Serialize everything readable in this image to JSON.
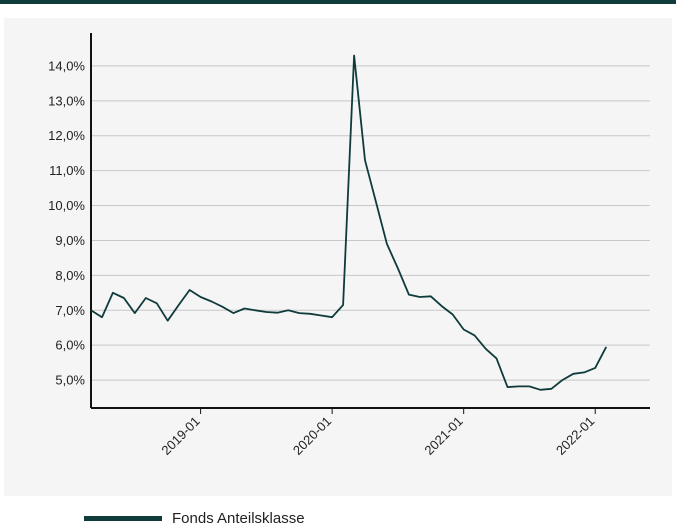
{
  "colors": {
    "series": "#0f3b3b",
    "grid": "#c8c8c8",
    "axis": "#111111",
    "panel": "#f5f5f5",
    "topbar": "#0f3b3b"
  },
  "chart_data": {
    "type": "line",
    "title": "",
    "xlabel": "",
    "ylabel": "",
    "ylim": [
      4.2,
      14.8
    ],
    "xlim": [
      "2018-03",
      "2022-06"
    ],
    "grid": "horizontal",
    "legend_position": "bottom-left",
    "y_ticks": [
      5.0,
      6.0,
      7.0,
      8.0,
      9.0,
      10.0,
      11.0,
      12.0,
      13.0,
      14.0
    ],
    "y_tick_labels": [
      "5,0%",
      "6,0%",
      "7,0%",
      "8,0%",
      "9,0%",
      "10,0%",
      "11,0%",
      "12,0%",
      "13,0%",
      "14,0%"
    ],
    "x_ticks": [
      "2019-01",
      "2020-01",
      "2021-01",
      "2022-01"
    ],
    "x_tick_labels": [
      "2019-01",
      "2020-01",
      "2021-01",
      "2022-01"
    ],
    "series": [
      {
        "name": "Fonds Anteilsklasse",
        "points": [
          [
            "2018-03",
            7.0
          ],
          [
            "2018-04",
            6.8
          ],
          [
            "2018-05",
            7.5
          ],
          [
            "2018-06",
            7.35
          ],
          [
            "2018-07",
            6.92
          ],
          [
            "2018-08",
            7.35
          ],
          [
            "2018-09",
            7.2
          ],
          [
            "2018-10",
            6.7
          ],
          [
            "2018-11",
            7.15
          ],
          [
            "2018-12",
            7.58
          ],
          [
            "2019-01",
            7.38
          ],
          [
            "2019-02",
            7.25
          ],
          [
            "2019-03",
            7.1
          ],
          [
            "2019-04",
            6.92
          ],
          [
            "2019-05",
            7.05
          ],
          [
            "2019-06",
            7.0
          ],
          [
            "2019-07",
            6.95
          ],
          [
            "2019-08",
            6.93
          ],
          [
            "2019-09",
            7.0
          ],
          [
            "2019-10",
            6.92
          ],
          [
            "2019-11",
            6.9
          ],
          [
            "2019-12",
            6.85
          ],
          [
            "2020-01",
            6.8
          ],
          [
            "2020-02",
            7.15
          ],
          [
            "2020-03",
            14.3
          ],
          [
            "2020-04",
            11.3
          ],
          [
            "2020-05",
            10.1
          ],
          [
            "2020-06",
            8.9
          ],
          [
            "2020-07",
            8.2
          ],
          [
            "2020-08",
            7.45
          ],
          [
            "2020-09",
            7.38
          ],
          [
            "2020-10",
            7.4
          ],
          [
            "2020-11",
            7.12
          ],
          [
            "2020-12",
            6.88
          ],
          [
            "2021-01",
            6.45
          ],
          [
            "2021-02",
            6.28
          ],
          [
            "2021-03",
            5.9
          ],
          [
            "2021-04",
            5.62
          ],
          [
            "2021-05",
            4.8
          ],
          [
            "2021-06",
            4.82
          ],
          [
            "2021-07",
            4.82
          ],
          [
            "2021-08",
            4.72
          ],
          [
            "2021-09",
            4.75
          ],
          [
            "2021-10",
            5.0
          ],
          [
            "2021-11",
            5.18
          ],
          [
            "2021-12",
            5.22
          ],
          [
            "2022-01",
            5.35
          ],
          [
            "2022-02",
            5.95
          ]
        ]
      }
    ]
  },
  "legend": {
    "label": "Fonds Anteilsklasse"
  }
}
